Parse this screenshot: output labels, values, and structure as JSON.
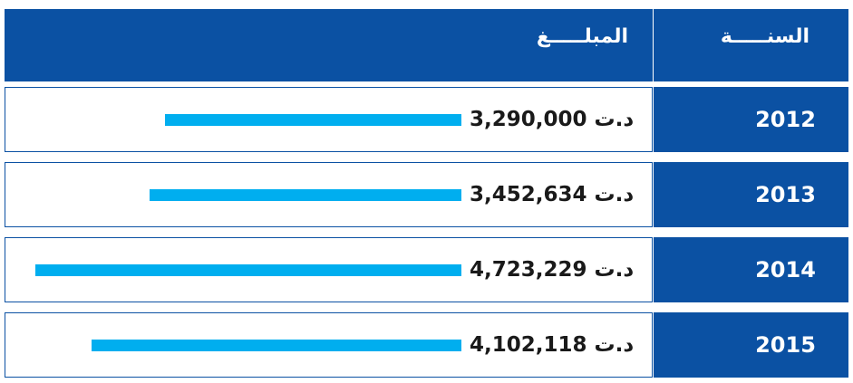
{
  "header": {
    "year_label": "السنـــــة",
    "amount_label": "المبلـــــغ"
  },
  "chart_data": {
    "type": "bar",
    "orientation": "horizontal",
    "categories": [
      "2012",
      "2013",
      "2014",
      "2015"
    ],
    "values": [
      3290000,
      3452634,
      4723229,
      4102118
    ],
    "value_labels": [
      "3,290,000 د.ت",
      "3,452,634 د.ت",
      "4,723,229 د.ت",
      "4,102,118 د.ت"
    ],
    "unit": "د.ت",
    "colors": {
      "bar": "#00aeef",
      "header": "#0b51a3"
    }
  }
}
